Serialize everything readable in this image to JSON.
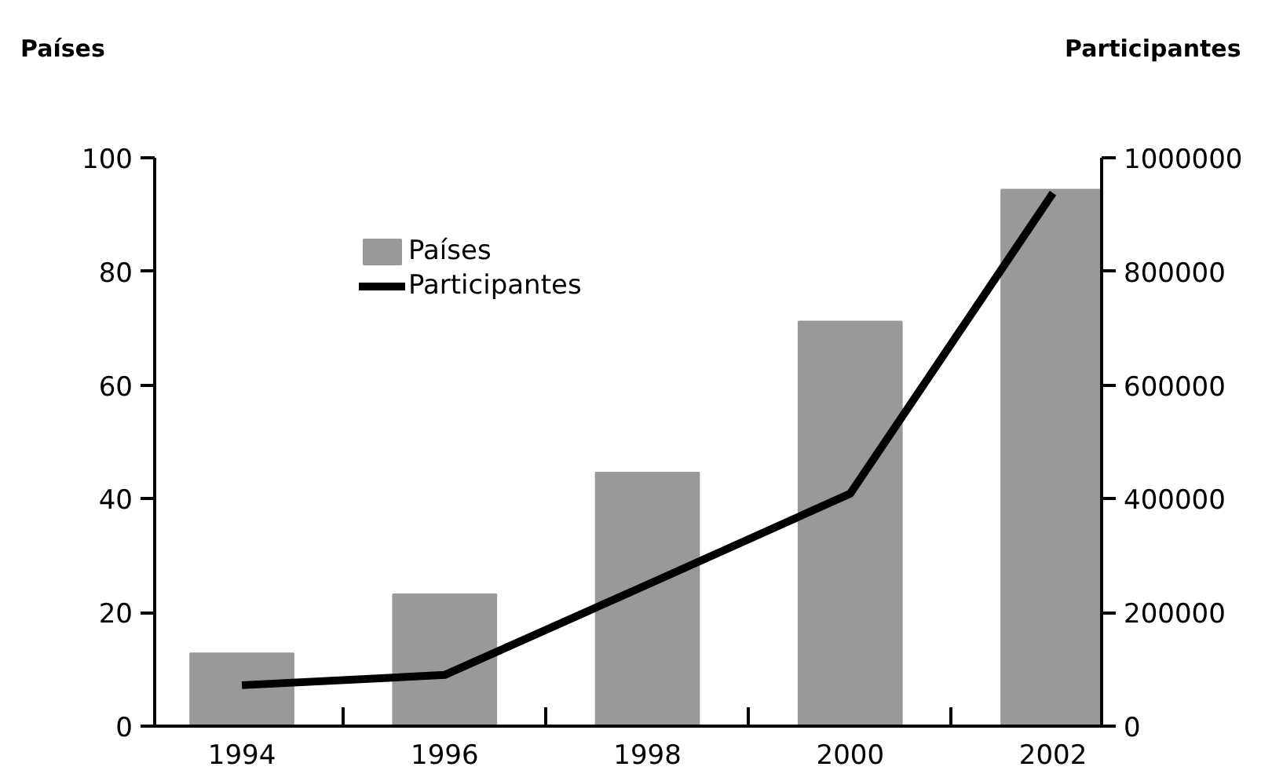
{
  "chart_data": {
    "type": "bar",
    "ylabel": "Países",
    "y2label": "Participantes",
    "categories": [
      "1994",
      "1996",
      "1998",
      "2000",
      "2002"
    ],
    "series": [
      {
        "name": "Países",
        "color": "#999999",
        "values": [
          12.8,
          23.2,
          44.6,
          71.2,
          94.4
        ]
      },
      {
        "name": "Participantes",
        "type": "line",
        "axis": "y2",
        "color": "#000000",
        "values": [
          72000,
          90000,
          249000,
          409000,
          938000
        ]
      }
    ],
    "ylim": [
      0,
      100
    ],
    "yticks": [
      0,
      20,
      40,
      60,
      80,
      100
    ],
    "y2lim": [
      0,
      1000000
    ],
    "y2ticks": [
      0,
      200000,
      400000,
      600000,
      800000,
      1000000
    ],
    "grid": false,
    "legend": "top left",
    "line_style": "solid",
    "marker": "none"
  }
}
